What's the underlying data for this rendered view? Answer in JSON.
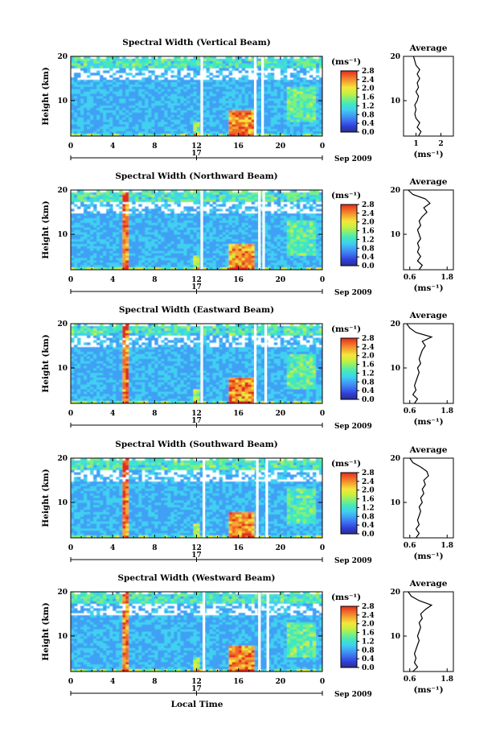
{
  "xlabel": "Local Time",
  "ylabel": "Height (km)",
  "date_label": "Sep 2009",
  "day_label": "17",
  "unit_label": "(ms⁻¹)",
  "avg_title": "Average",
  "x_ticks": [
    "0",
    "4",
    "8",
    "12",
    "16",
    "20",
    "0"
  ],
  "y_ticks": [
    "20",
    "10"
  ],
  "cbar_ticks": [
    "2.8",
    "2.4",
    "2.0",
    "1.6",
    "1.2",
    "0.8",
    "0.4",
    "0.0"
  ],
  "colors": {
    "scale": [
      "#2b2f8f",
      "#2f3ed6",
      "#3d6df0",
      "#3fa0f5",
      "#3fd0f0",
      "#40e8c0",
      "#7ff07a",
      "#c8f040",
      "#f5e63a",
      "#f5a830",
      "#f06a28",
      "#e42a1e"
    ]
  },
  "chart_data": [
    {
      "type": "heatmap",
      "title": "Spectral Width (Vertical Beam)",
      "xlim": [
        0,
        24
      ],
      "ylim": [
        2,
        20
      ],
      "gaps_hours": [
        12.5,
        17.6,
        18.3
      ],
      "avg": {
        "xticks": [
          "1",
          "2"
        ],
        "xlim": [
          0.5,
          2.5
        ],
        "profile": [
          [
            2,
            1.1
          ],
          [
            3,
            1.2
          ],
          [
            4,
            1.05
          ],
          [
            5,
            1.15
          ],
          [
            6,
            1.0
          ],
          [
            7,
            0.95
          ],
          [
            8,
            1.0
          ],
          [
            9,
            0.95
          ],
          [
            10,
            1.05
          ],
          [
            11,
            1.1
          ],
          [
            12,
            1.0
          ],
          [
            13,
            1.1
          ],
          [
            14,
            1.05
          ],
          [
            15,
            1.15
          ],
          [
            16,
            1.05
          ],
          [
            17,
            1.15
          ],
          [
            18,
            1.0
          ],
          [
            19,
            0.95
          ],
          [
            20,
            0.9
          ]
        ]
      }
    },
    {
      "type": "heatmap",
      "title": "Spectral Width (Northward Beam)",
      "xlim": [
        0,
        24
      ],
      "ylim": [
        2,
        20
      ],
      "gaps_hours": [
        12.5,
        18.0,
        18.4
      ],
      "avg": {
        "xticks": [
          "0.6",
          "1.8"
        ],
        "xlim": [
          0.4,
          2.0
        ],
        "profile": [
          [
            2,
            0.9
          ],
          [
            3,
            1.0
          ],
          [
            4,
            0.85
          ],
          [
            5,
            0.95
          ],
          [
            6,
            0.85
          ],
          [
            7,
            0.9
          ],
          [
            8,
            0.85
          ],
          [
            9,
            0.95
          ],
          [
            10,
            0.9
          ],
          [
            11,
            0.85
          ],
          [
            12,
            0.95
          ],
          [
            13,
            0.9
          ],
          [
            14,
            1.0
          ],
          [
            15,
            1.15
          ],
          [
            16,
            1.05
          ],
          [
            17,
            1.25
          ],
          [
            18,
            1.1
          ],
          [
            19,
            0.7
          ],
          [
            20,
            0.55
          ]
        ]
      }
    },
    {
      "type": "heatmap",
      "title": "Spectral Width (Eastward Beam)",
      "xlim": [
        0,
        24
      ],
      "ylim": [
        2,
        20
      ],
      "gaps_hours": [
        12.5,
        17.6,
        18.6
      ],
      "avg": {
        "xticks": [
          "0.6",
          "1.8"
        ],
        "xlim": [
          0.4,
          2.0
        ],
        "profile": [
          [
            2,
            0.75
          ],
          [
            3,
            0.85
          ],
          [
            4,
            0.7
          ],
          [
            5,
            0.8
          ],
          [
            6,
            0.75
          ],
          [
            7,
            0.8
          ],
          [
            8,
            0.85
          ],
          [
            9,
            0.9
          ],
          [
            10,
            0.85
          ],
          [
            11,
            0.95
          ],
          [
            12,
            0.9
          ],
          [
            13,
            0.95
          ],
          [
            14,
            1.0
          ],
          [
            15,
            1.1
          ],
          [
            16,
            1.0
          ],
          [
            17,
            1.3
          ],
          [
            18,
            0.8
          ],
          [
            19,
            0.6
          ],
          [
            20,
            0.5
          ]
        ]
      }
    },
    {
      "type": "heatmap",
      "title": "Spectral Width (Southward Beam)",
      "xlim": [
        0,
        24
      ],
      "ylim": [
        2,
        20
      ],
      "gaps_hours": [
        12.7,
        17.8,
        18.7
      ],
      "avg": {
        "xticks": [
          "0.6",
          "1.8"
        ],
        "xlim": [
          0.4,
          2.0
        ],
        "profile": [
          [
            2,
            0.8
          ],
          [
            3,
            0.9
          ],
          [
            4,
            0.8
          ],
          [
            5,
            0.9
          ],
          [
            6,
            0.85
          ],
          [
            7,
            0.9
          ],
          [
            8,
            0.95
          ],
          [
            9,
            0.9
          ],
          [
            10,
            1.0
          ],
          [
            11,
            0.95
          ],
          [
            12,
            1.05
          ],
          [
            13,
            1.0
          ],
          [
            14,
            1.1
          ],
          [
            15,
            1.05
          ],
          [
            16,
            1.2
          ],
          [
            17,
            1.15
          ],
          [
            18,
            0.95
          ],
          [
            19,
            0.7
          ],
          [
            20,
            0.6
          ]
        ]
      }
    },
    {
      "type": "heatmap",
      "title": "Spectral Width (Westward Beam)",
      "xlim": [
        0,
        24
      ],
      "ylim": [
        2,
        20
      ],
      "gaps_hours": [
        12.7,
        18.0,
        18.8
      ],
      "avg": {
        "xticks": [
          "0.6",
          "1.8"
        ],
        "xlim": [
          0.4,
          2.0
        ],
        "profile": [
          [
            2,
            0.7
          ],
          [
            3,
            0.85
          ],
          [
            4,
            0.75
          ],
          [
            5,
            0.8
          ],
          [
            6,
            0.75
          ],
          [
            7,
            0.8
          ],
          [
            8,
            0.85
          ],
          [
            9,
            0.9
          ],
          [
            10,
            0.85
          ],
          [
            11,
            0.9
          ],
          [
            12,
            0.95
          ],
          [
            13,
            0.9
          ],
          [
            14,
            1.0
          ],
          [
            15,
            0.95
          ],
          [
            16,
            1.1
          ],
          [
            17,
            1.3
          ],
          [
            18,
            0.9
          ],
          [
            19,
            0.65
          ],
          [
            20,
            0.55
          ]
        ]
      }
    }
  ]
}
